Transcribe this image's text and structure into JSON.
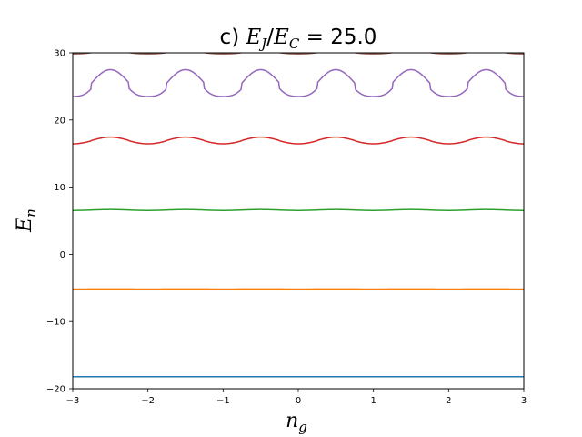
{
  "chart_data": {
    "type": "line",
    "title": {
      "prefix": "c) ",
      "ratio_num": "E",
      "ratio_num_sub": "J",
      "ratio_slash": "/",
      "ratio_den": "E",
      "ratio_den_sub": "C",
      "equals": " = ",
      "value": "25.0"
    },
    "xlabel": {
      "main": "n",
      "sub": "g"
    },
    "ylabel": {
      "main": "E",
      "sub": "n"
    },
    "xlim": [
      -3,
      3
    ],
    "ylim": [
      -20,
      30
    ],
    "x_ticks": [
      -3,
      -2,
      -1,
      0,
      1,
      2,
      3
    ],
    "y_ticks": [
      -20,
      -10,
      0,
      10,
      20,
      30
    ],
    "x_tick_labels": [
      "−3",
      "−2",
      "−1",
      "0",
      "1",
      "2",
      "3"
    ],
    "y_tick_labels": [
      "−20",
      "−10",
      "0",
      "10",
      "20",
      "30"
    ],
    "grid": false,
    "series": [
      {
        "color": "#1f77b4",
        "mean": -18.2,
        "amp": 0.0,
        "sharp": 0
      },
      {
        "color": "#ff7f0e",
        "mean": -5.15,
        "amp": 0.01,
        "sharp": 0
      },
      {
        "color": "#2ca02c",
        "mean": 6.6,
        "amp": 0.07,
        "sharp": 0
      },
      {
        "color": "#d62728",
        "mean": 16.95,
        "amp": 0.5,
        "sharp": 0.2
      },
      {
        "color": "#9467bd",
        "mean": 25.5,
        "amp": 2.0,
        "sharp": 0.8
      },
      {
        "color": "#8c564b",
        "mean": 30.1,
        "amp": 0.25,
        "sharp": 0.6
      }
    ]
  }
}
